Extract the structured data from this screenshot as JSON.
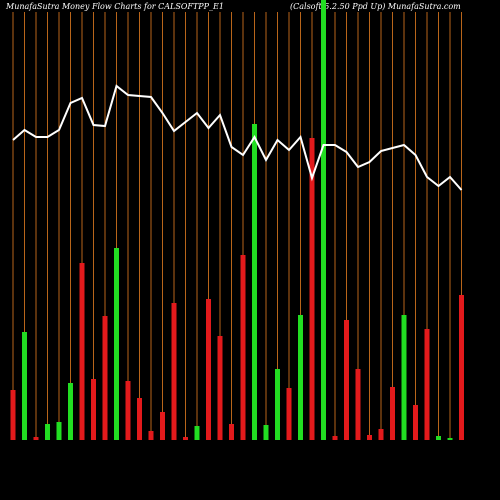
{
  "chart_data": {
    "type": "bar",
    "title": "MunafaSutra  Money Flow  Charts for CALSOFTPP_E1",
    "subtitle": "(Calsoft  5.2.50  Ppd Up) MunafaSutra.com",
    "ylim": [
      0,
      440
    ],
    "values": [
      50,
      108,
      3,
      16,
      18,
      57,
      177,
      61,
      124,
      192,
      59,
      42,
      9,
      28,
      137,
      3,
      14,
      141,
      104,
      16,
      185,
      316,
      15,
      71,
      52,
      125,
      302,
      440,
      4,
      120,
      71,
      5,
      11,
      53,
      125,
      35,
      111,
      4,
      2,
      145
    ],
    "colors": [
      "#e31a1c",
      "#22dd22",
      "#e31a1c",
      "#22dd22",
      "#22dd22",
      "#22dd22",
      "#e31a1c",
      "#e31a1c",
      "#e31a1c",
      "#22dd22",
      "#e31a1c",
      "#e31a1c",
      "#e31a1c",
      "#e31a1c",
      "#e31a1c",
      "#e31a1c",
      "#22dd22",
      "#e31a1c",
      "#e31a1c",
      "#e31a1c",
      "#e31a1c",
      "#22dd22",
      "#22dd22",
      "#22dd22",
      "#e31a1c",
      "#22dd22",
      "#e31a1c",
      "#22dd22",
      "#e31a1c",
      "#e31a1c",
      "#e31a1c",
      "#e31a1c",
      "#e31a1c",
      "#e31a1c",
      "#22dd22",
      "#e31a1c",
      "#e31a1c",
      "#22dd22",
      "#22dd22",
      "#e31a1c"
    ],
    "line": {
      "color": "#ffffff",
      "values": [
        300,
        310,
        303,
        303,
        310,
        337,
        342,
        315,
        314,
        354,
        345,
        344,
        343,
        327,
        309,
        318,
        327,
        312,
        325,
        293,
        285,
        303,
        280,
        300,
        290,
        303,
        262,
        295,
        295,
        288,
        273,
        278,
        289,
        292,
        295,
        285,
        263,
        254,
        263,
        250
      ]
    },
    "gridColor": "#b8651a"
  }
}
